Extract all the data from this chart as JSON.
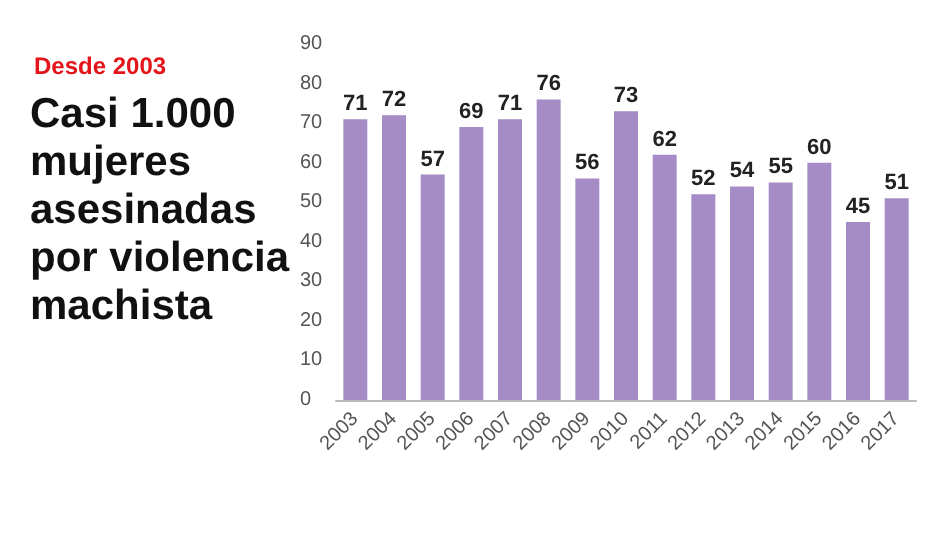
{
  "chart_data": {
    "type": "bar",
    "title": "Casi 1.000 mujeres asesinadas por violencia machista",
    "subtitle": "Desde 2003",
    "categories": [
      "2003",
      "2004",
      "2005",
      "2006",
      "2007",
      "2008",
      "2009",
      "2010",
      "2011",
      "2012",
      "2013",
      "2014",
      "2015",
      "2016",
      "2017"
    ],
    "values": [
      71,
      72,
      57,
      69,
      71,
      76,
      56,
      73,
      62,
      52,
      54,
      55,
      60,
      45,
      51
    ],
    "color": "#a58cc6",
    "ylim": [
      0,
      90
    ],
    "yticks": [
      0,
      10,
      20,
      30,
      40,
      50,
      60,
      70,
      80,
      90
    ],
    "grid": false,
    "data_labels": true
  }
}
